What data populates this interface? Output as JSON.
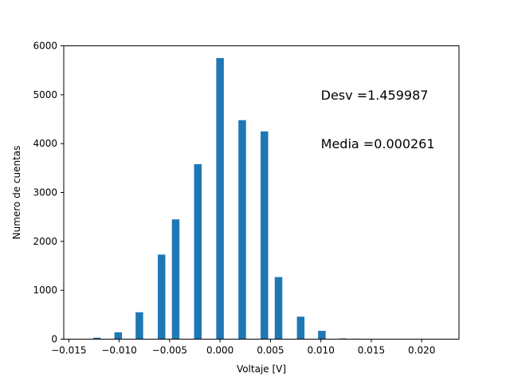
{
  "chart_data": {
    "type": "bar",
    "xlabel": "Voltaje [V]",
    "ylabel": "Numero de cuentas",
    "xlim": [
      -0.0155,
      0.0237
    ],
    "ylim": [
      0,
      6000
    ],
    "bar_width": 0.00075,
    "bar_color": "#1f77b4",
    "grid": false,
    "x": [
      -0.0122,
      -0.0101,
      -0.008,
      -0.0058,
      -0.0044,
      -0.0022,
      0.0,
      0.0022,
      0.0044,
      0.0058,
      0.008,
      0.0101,
      0.0122,
      0.0137
    ],
    "values": [
      30,
      140,
      550,
      1730,
      2450,
      3580,
      5750,
      4480,
      4250,
      1270,
      460,
      170,
      15,
      10
    ],
    "x_ticks": [
      -0.015,
      -0.01,
      -0.005,
      0.0,
      0.005,
      0.01,
      0.015,
      0.02
    ],
    "x_tick_labels": [
      "−0.015",
      "−0.010",
      "−0.005",
      "0.000",
      "0.005",
      "0.010",
      "0.015",
      "0.020"
    ],
    "y_ticks": [
      0,
      1000,
      2000,
      3000,
      4000,
      5000,
      6000
    ],
    "y_tick_labels": [
      "0",
      "1000",
      "2000",
      "3000",
      "4000",
      "5000",
      "6000"
    ],
    "annotations": [
      {
        "text": "Desv =1.459987",
        "x": 0.01,
        "y": 5000
      },
      {
        "text": "Media =0.000261",
        "x": 0.01,
        "y": 4000
      }
    ]
  }
}
